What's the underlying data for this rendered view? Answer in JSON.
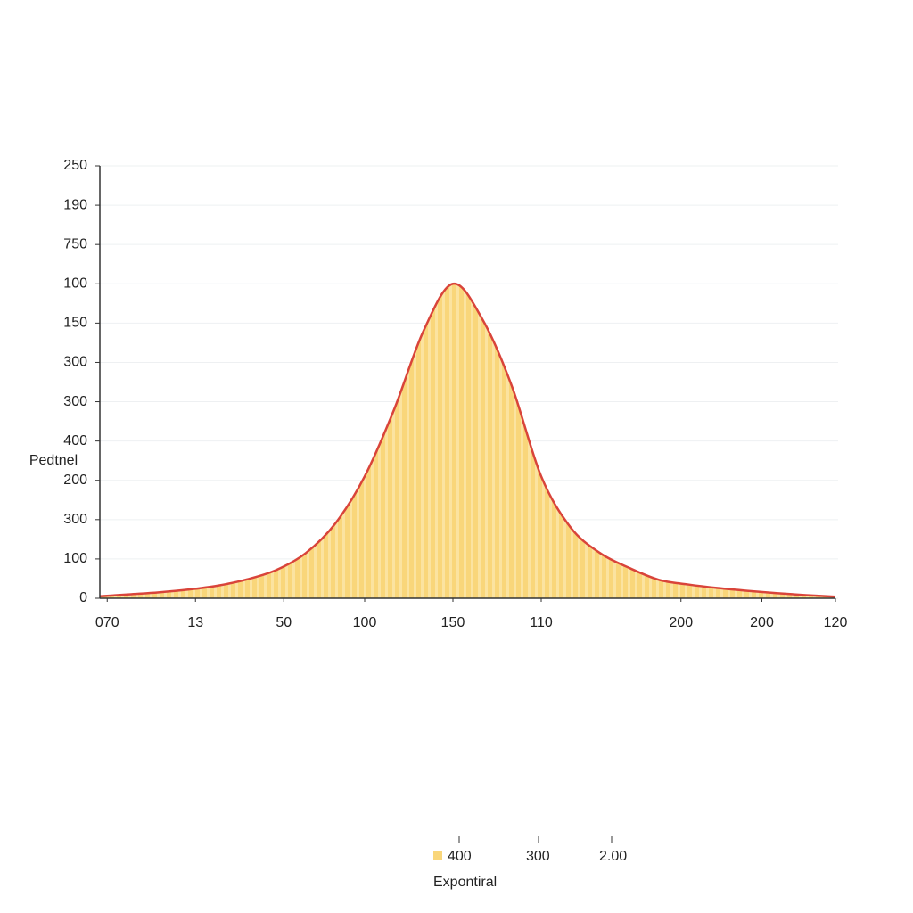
{
  "chart_data": {
    "type": "area",
    "y_label": "Pedtnel",
    "x": [
      0,
      4,
      8,
      12,
      16,
      20,
      24,
      28,
      32,
      36,
      40,
      44,
      48,
      52,
      56,
      60,
      64,
      68,
      72,
      76,
      80,
      84,
      88,
      92,
      96,
      100
    ],
    "values": [
      0.05,
      0.1,
      0.15,
      0.22,
      0.32,
      0.48,
      0.72,
      1.15,
      1.9,
      3.1,
      4.8,
      6.8,
      8.0,
      7.1,
      5.4,
      3.1,
      1.8,
      1.15,
      0.77,
      0.47,
      0.35,
      0.26,
      0.19,
      0.13,
      0.08,
      0.04
    ],
    "color": "#d9443a",
    "fill_color": "#f9d67a",
    "xlim": [
      0,
      100
    ],
    "xticks": [
      {
        "value": 1,
        "label": "070"
      },
      13,
      {
        "value": 25,
        "label": "50"
      },
      {
        "value": 36,
        "label": "100"
      },
      {
        "value": 48,
        "label": "150"
      },
      {
        "value": 60,
        "label": "110"
      },
      {
        "value": 79,
        "label": "200"
      },
      {
        "value": 90,
        "label": "200"
      },
      {
        "value": 100,
        "label": "120"
      }
    ],
    "ylim": [
      0,
      11
    ],
    "yticks": [
      0,
      {
        "value": 1,
        "label": "100"
      },
      {
        "value": 2,
        "label": "300"
      },
      {
        "value": 3,
        "label": "200"
      },
      {
        "value": 4,
        "label": "400"
      },
      {
        "value": 5,
        "label": "300"
      },
      {
        "value": 6,
        "label": "300"
      },
      {
        "value": 7,
        "label": "150"
      },
      {
        "value": 8,
        "label": "100"
      },
      {
        "value": 9,
        "label": "750"
      },
      {
        "value": 10,
        "label": "190"
      },
      {
        "value": 11,
        "label": "250"
      }
    ],
    "grid": true,
    "legend": {
      "title": "Expontiral",
      "entries": [
        "400",
        "300",
        "2.00"
      ]
    }
  }
}
